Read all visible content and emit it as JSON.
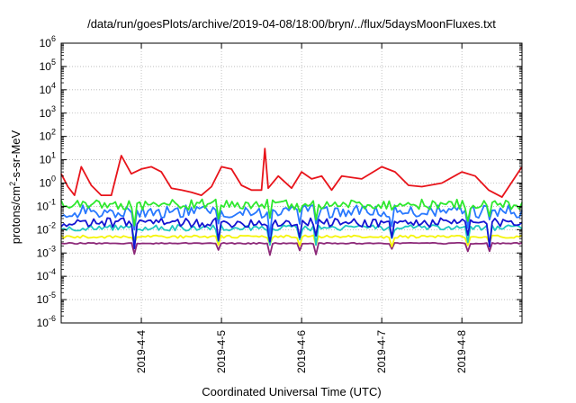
{
  "chart_data": {
    "type": "line",
    "title": "/data/run/goesPlots/archive/2019-04-08/18:00/bryn/../flux/5daysMoonFluxes.txt",
    "xlabel": "Coordinated Universal Time (UTC)",
    "ylabel_main": "protons/cm",
    "ylabel_sup": "2",
    "ylabel_rest": "-s-sr-MeV",
    "y_scale": "log",
    "ylim_exp": [
      -6,
      6
    ],
    "y_tick_exponents": [
      -6,
      -5,
      -4,
      -3,
      -2,
      -1,
      0,
      1,
      2,
      3,
      4,
      5,
      6
    ],
    "y_tick_base": "10",
    "xlim": [
      "2019-04-03 00:00",
      "2019-04-08 18:00"
    ],
    "x_tick_labels": [
      "2019-4-4",
      "2019-4-5",
      "2019-4-6",
      "2019-4-7",
      "2019-4-8"
    ],
    "grid": true,
    "series": [
      {
        "color": "#e8141b",
        "x": [
          "2019-04-03 00:00",
          "2019-04-03 02:00",
          "2019-04-03 04:00",
          "2019-04-03 06:00",
          "2019-04-03 09:00",
          "2019-04-03 12:00",
          "2019-04-03 15:00",
          "2019-04-03 18:00",
          "2019-04-03 21:00",
          "2019-04-04 00:00",
          "2019-04-04 03:00",
          "2019-04-04 06:00",
          "2019-04-04 09:00",
          "2019-04-04 12:00",
          "2019-04-04 15:00",
          "2019-04-04 18:00",
          "2019-04-04 21:00",
          "2019-04-05 00:00",
          "2019-04-05 03:00",
          "2019-04-05 06:00",
          "2019-04-05 09:00",
          "2019-04-05 12:00",
          "2019-04-05 13:00",
          "2019-04-05 14:00",
          "2019-04-05 17:00",
          "2019-04-05 21:00",
          "2019-04-06 00:00",
          "2019-04-06 03:00",
          "2019-04-06 06:00",
          "2019-04-06 09:00",
          "2019-04-06 12:00",
          "2019-04-06 18:00",
          "2019-04-07 00:00",
          "2019-04-07 04:00",
          "2019-04-07 08:00",
          "2019-04-07 12:00",
          "2019-04-07 18:00",
          "2019-04-08 00:00",
          "2019-04-08 04:00",
          "2019-04-08 08:00",
          "2019-04-08 12:00",
          "2019-04-08 18:00"
        ],
        "values": [
          2.5,
          0.7,
          0.3,
          5,
          0.8,
          0.3,
          0.3,
          15,
          2.5,
          4,
          5,
          3,
          0.6,
          0.5,
          0.4,
          0.3,
          0.7,
          5,
          4,
          0.8,
          0.5,
          0.5,
          30,
          0.6,
          2,
          0.6,
          3,
          1.5,
          2,
          0.5,
          2,
          1.5,
          5,
          3,
          0.8,
          0.7,
          1,
          3,
          2,
          0.5,
          0.25,
          5
        ]
      },
      {
        "color": "#2ee82e",
        "base": 0.12,
        "amp": 0.45,
        "spike_depth": 0.9
      },
      {
        "color": "#2878ff",
        "base": 0.06,
        "amp": 0.55,
        "spike_depth": 1.0
      },
      {
        "color": "#1414d2",
        "base": 0.02,
        "amp": 0.4,
        "spike_depth": 1.0
      },
      {
        "color": "#20c8c0",
        "base": 0.012,
        "amp": 0.25,
        "spike_depth": 0.8
      },
      {
        "color": "#f5f50a",
        "base": 0.005,
        "amp": 0.12,
        "spike_depth": 0.4
      },
      {
        "color": "#8c2878",
        "base": 0.0026,
        "amp": 0.05,
        "spike_depth": 0.5
      }
    ]
  }
}
